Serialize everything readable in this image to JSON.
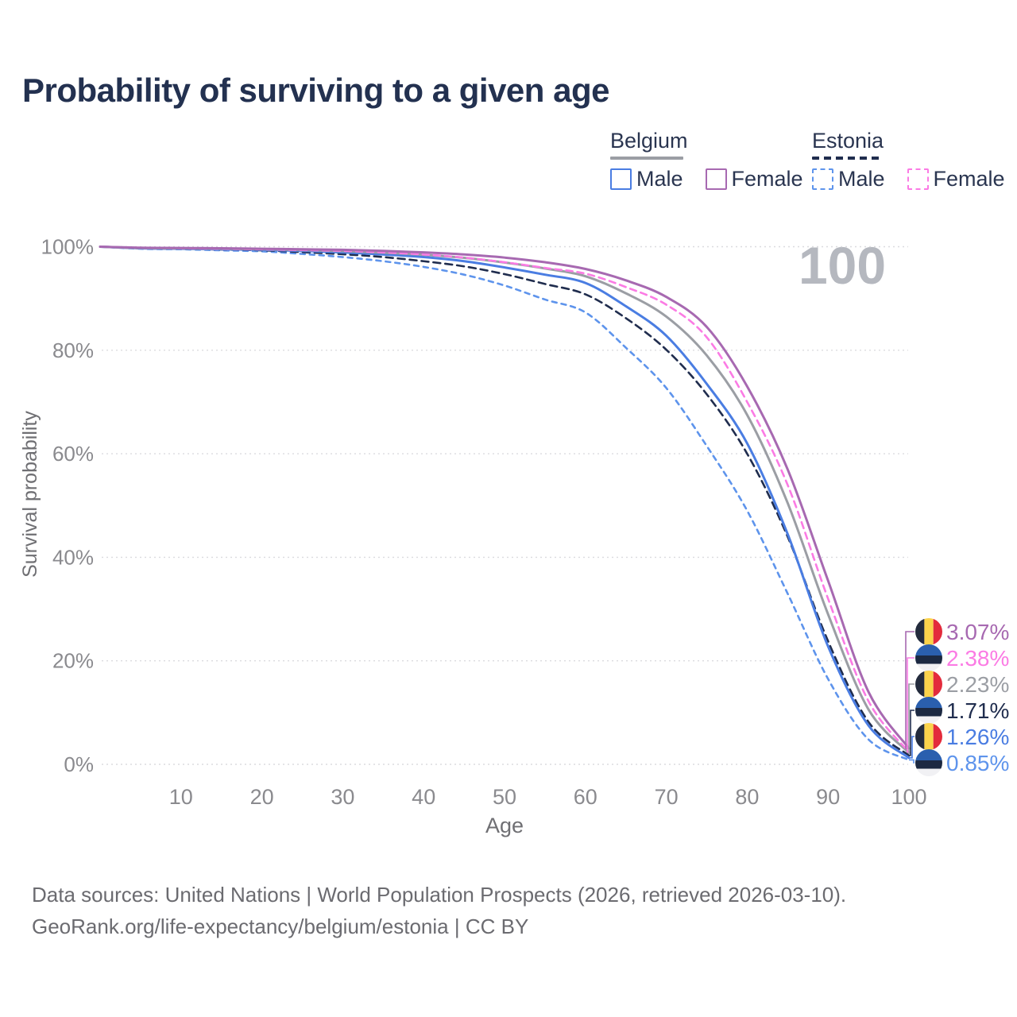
{
  "title": "Probability of surviving to a given age",
  "hover_indicator": {
    "age_label": "100"
  },
  "legend": {
    "groups": [
      {
        "label": "Belgium",
        "line_style": "solid",
        "items": [
          {
            "label": "Male"
          },
          {
            "label": "Female"
          }
        ]
      },
      {
        "label": "Estonia",
        "line_style": "dashed",
        "items": [
          {
            "label": "Male"
          },
          {
            "label": "Female"
          }
        ]
      }
    ]
  },
  "colors": {
    "belgium_male": "#4a7de2",
    "belgium_female": "#a769b1",
    "belgium_total": "#9b9ea4",
    "estonia_male": "#5e94ec",
    "estonia_female": "#fb7be4",
    "estonia_total": "#202d4e",
    "title_text": "#233150",
    "axis_text": "#8a8a8e",
    "gridline": "#dbdbdf",
    "watermark": "#b5b8bf",
    "flag_belgium": [
      "#232b3d",
      "#fbd34b",
      "#e32b3c"
    ],
    "flag_estonia": [
      "#2a5fae",
      "#1c2942",
      "#f1f1f4"
    ]
  },
  "chart_data": {
    "type": "line",
    "title": "Probability of surviving to a given age",
    "xlabel": "Age",
    "ylabel": "Survival probability",
    "x_range": [
      0,
      100
    ],
    "y_range_pct": [
      0,
      100
    ],
    "x_ticks": [
      10,
      20,
      30,
      40,
      50,
      60,
      70,
      80,
      90,
      100
    ],
    "y_ticks": [
      {
        "value": 0,
        "label": "0%"
      },
      {
        "value": 20,
        "label": "20%"
      },
      {
        "value": 40,
        "label": "40%"
      },
      {
        "value": 60,
        "label": "60%"
      },
      {
        "value": 80,
        "label": "80%"
      },
      {
        "value": 100,
        "label": "100%"
      }
    ],
    "grid": "dotted-horizontal",
    "ages": [
      0,
      5,
      10,
      15,
      20,
      25,
      30,
      35,
      40,
      45,
      50,
      55,
      60,
      65,
      70,
      75,
      80,
      85,
      90,
      95,
      100
    ],
    "series": [
      {
        "key": "estonia_male",
        "name": "Estonia Male",
        "country": "Estonia",
        "dash": "dashed",
        "values": [
          100,
          99.6,
          99.5,
          99.3,
          99.1,
          98.6,
          98.0,
          97.2,
          96.1,
          94.6,
          92.5,
          89.8,
          87.3,
          80.5,
          72.7,
          61.5,
          49.0,
          33.0,
          16.5,
          4.8,
          0.85
        ]
      },
      {
        "key": "estonia_total",
        "name": "Estonia (total)",
        "country": "Estonia",
        "dash": "dashed",
        "values": [
          100,
          99.7,
          99.6,
          99.45,
          99.3,
          98.95,
          98.55,
          98.0,
          97.2,
          96.2,
          94.7,
          92.8,
          90.8,
          86.2,
          80.1,
          71.5,
          60.0,
          44.0,
          23.8,
          8.2,
          1.71
        ]
      },
      {
        "key": "belgium_male",
        "name": "Belgium Male",
        "country": "Belgium",
        "dash": "solid",
        "values": [
          100,
          99.7,
          99.6,
          99.5,
          99.4,
          99.2,
          98.9,
          98.5,
          98.0,
          97.2,
          96.0,
          94.6,
          93.0,
          88.5,
          82.8,
          73.5,
          62.0,
          44.5,
          22.8,
          7.5,
          1.26
        ]
      },
      {
        "key": "belgium_total",
        "name": "Belgium (total)",
        "country": "Belgium",
        "dash": "solid",
        "values": [
          100,
          99.75,
          99.68,
          99.6,
          99.5,
          99.35,
          99.15,
          98.85,
          98.45,
          97.85,
          96.95,
          95.8,
          94.3,
          91.0,
          86.5,
          79.0,
          67.5,
          50.5,
          29.0,
          10.6,
          2.23
        ]
      },
      {
        "key": "estonia_female",
        "name": "Estonia Female",
        "country": "Estonia",
        "dash": "dashed",
        "values": [
          100,
          99.8,
          99.7,
          99.6,
          99.5,
          99.35,
          99.2,
          98.9,
          98.5,
          97.9,
          97.0,
          95.9,
          94.8,
          92.2,
          88.8,
          82.5,
          70.0,
          54.0,
          32.0,
          12.2,
          2.38
        ]
      },
      {
        "key": "belgium_female",
        "name": "Belgium Female",
        "country": "Belgium",
        "dash": "solid",
        "values": [
          100,
          99.8,
          99.75,
          99.7,
          99.6,
          99.5,
          99.4,
          99.2,
          98.9,
          98.5,
          97.9,
          97.0,
          95.7,
          93.5,
          90.3,
          84.5,
          73.0,
          57.0,
          35.5,
          14.0,
          3.07
        ]
      }
    ],
    "end_labels": [
      {
        "value_label": "3.07%",
        "series_key": "belgium_female",
        "flag": "belgium"
      },
      {
        "value_label": "2.38%",
        "series_key": "estonia_female",
        "flag": "estonia"
      },
      {
        "value_label": "2.23%",
        "series_key": "belgium_total",
        "flag": "belgium"
      },
      {
        "value_label": "1.71%",
        "series_key": "estonia_total",
        "flag": "estonia"
      },
      {
        "value_label": "1.26%",
        "series_key": "belgium_male",
        "flag": "belgium"
      },
      {
        "value_label": "0.85%",
        "series_key": "estonia_male",
        "flag": "estonia"
      }
    ]
  },
  "footer": {
    "line1": "Data sources: United Nations | World Population Prospects (2026, retrieved 2026-03-10).",
    "line2": "GeoRank.org/life-expectancy/belgium/estonia | CC BY"
  }
}
